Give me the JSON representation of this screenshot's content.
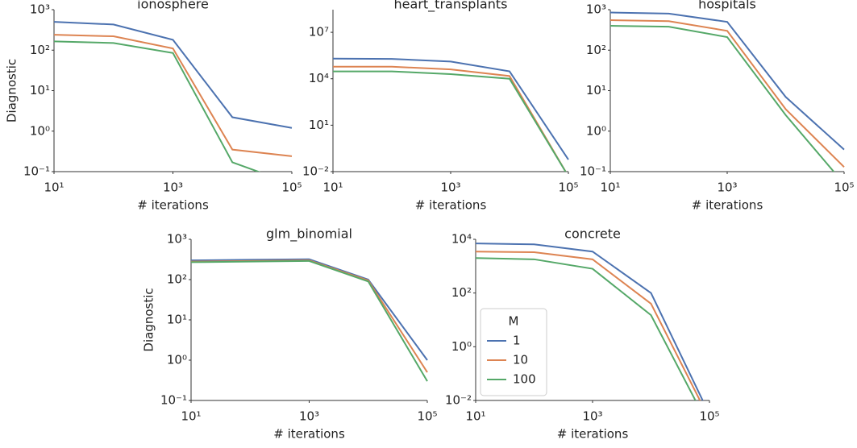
{
  "chart_data": [
    {
      "type": "line",
      "title": "ionosphere",
      "xlabel": "# iterations",
      "ylabel": "Diagnostic",
      "xscale": "log",
      "yscale": "log",
      "x": [
        10,
        100,
        1000,
        10000,
        100000
      ],
      "xlim": [
        10,
        100000
      ],
      "ylim": [
        0.1,
        1000
      ],
      "xticks": [
        {
          "value": 10,
          "label": "10¹"
        },
        {
          "value": 1000,
          "label": "10³"
        },
        {
          "value": 100000,
          "label": "10⁵"
        }
      ],
      "yticks": [
        {
          "value": 0.1,
          "label": "10⁻¹"
        },
        {
          "value": 1,
          "label": "10⁰"
        },
        {
          "value": 10,
          "label": "10¹"
        },
        {
          "value": 100,
          "label": "10²"
        },
        {
          "value": 1000,
          "label": "10³"
        }
      ],
      "series": [
        {
          "name": "1",
          "color": "#4c72b0",
          "values": [
            500,
            430,
            180,
            2.2,
            1.2
          ]
        },
        {
          "name": "10",
          "color": "#dd8452",
          "values": [
            240,
            220,
            110,
            0.35,
            0.24
          ]
        },
        {
          "name": "100",
          "color": "#55a868",
          "values": [
            165,
            150,
            85,
            0.17,
            0.05
          ]
        }
      ]
    },
    {
      "type": "line",
      "title": "heart_transplants",
      "xlabel": "# iterations",
      "xscale": "log",
      "yscale": "log",
      "x": [
        10,
        100,
        1000,
        10000,
        100000
      ],
      "xlim": [
        10,
        100000
      ],
      "ylim": [
        0.01,
        290000000
      ],
      "xticks": [
        {
          "value": 10,
          "label": "10¹"
        },
        {
          "value": 1000,
          "label": "10³"
        },
        {
          "value": 100000,
          "label": "10⁵"
        }
      ],
      "yticks": [
        {
          "value": 0.01,
          "label": "10⁻²"
        },
        {
          "value": 10,
          "label": "10¹"
        },
        {
          "value": 10000,
          "label": "10⁴"
        },
        {
          "value": 10000000,
          "label": "10⁷"
        }
      ],
      "series": [
        {
          "name": "1",
          "color": "#4c72b0",
          "values": [
            200000,
            190000,
            130000,
            30000,
            0.06
          ]
        },
        {
          "name": "10",
          "color": "#dd8452",
          "values": [
            60000,
            60000,
            40000,
            15000,
            0.005
          ]
        },
        {
          "name": "100",
          "color": "#55a868",
          "values": [
            30000,
            30000,
            20000,
            10000,
            0.005
          ]
        }
      ]
    },
    {
      "type": "line",
      "title": "hospitals",
      "xlabel": "# iterations",
      "xscale": "log",
      "yscale": "log",
      "x": [
        10,
        100,
        1000,
        10000,
        100000
      ],
      "xlim": [
        10,
        100000
      ],
      "ylim": [
        0.1,
        1000
      ],
      "xticks": [
        {
          "value": 10,
          "label": "10¹"
        },
        {
          "value": 1000,
          "label": "10³"
        },
        {
          "value": 100000,
          "label": "10⁵"
        }
      ],
      "yticks": [
        {
          "value": 0.1,
          "label": "10⁻¹"
        },
        {
          "value": 1,
          "label": "10⁰"
        },
        {
          "value": 10,
          "label": "10¹"
        },
        {
          "value": 100,
          "label": "10²"
        },
        {
          "value": 1000,
          "label": "10³"
        }
      ],
      "series": [
        {
          "name": "1",
          "color": "#4c72b0",
          "values": [
            850,
            800,
            500,
            7,
            0.35
          ]
        },
        {
          "name": "10",
          "color": "#dd8452",
          "values": [
            550,
            520,
            300,
            3.5,
            0.13
          ]
        },
        {
          "name": "100",
          "color": "#55a868",
          "values": [
            400,
            380,
            210,
            2.5,
            0.05
          ]
        }
      ]
    },
    {
      "type": "line",
      "title": "glm_binomial",
      "xlabel": "# iterations",
      "ylabel": "Diagnostic",
      "xscale": "log",
      "yscale": "log",
      "x": [
        10,
        100,
        1000,
        10000,
        100000
      ],
      "xlim": [
        10,
        100000
      ],
      "ylim": [
        0.1,
        1000
      ],
      "xticks": [
        {
          "value": 10,
          "label": "10¹"
        },
        {
          "value": 1000,
          "label": "10³"
        },
        {
          "value": 100000,
          "label": "10⁵"
        }
      ],
      "yticks": [
        {
          "value": 0.1,
          "label": "10⁻¹"
        },
        {
          "value": 1,
          "label": "10⁰"
        },
        {
          "value": 10,
          "label": "10¹"
        },
        {
          "value": 100,
          "label": "10²"
        },
        {
          "value": 1000,
          "label": "10³"
        }
      ],
      "series": [
        {
          "name": "1",
          "color": "#4c72b0",
          "values": [
            300,
            310,
            320,
            100,
            1.0
          ]
        },
        {
          "name": "10",
          "color": "#dd8452",
          "values": [
            280,
            290,
            300,
            95,
            0.5
          ]
        },
        {
          "name": "100",
          "color": "#55a868",
          "values": [
            270,
            280,
            290,
            90,
            0.3
          ]
        }
      ]
    },
    {
      "type": "line",
      "title": "concrete",
      "xlabel": "# iterations",
      "xscale": "log",
      "yscale": "log",
      "x": [
        10,
        100,
        1000,
        10000,
        100000
      ],
      "xlim": [
        10,
        100000
      ],
      "ylim": [
        0.01,
        10000
      ],
      "xticks": [
        {
          "value": 10,
          "label": "10¹"
        },
        {
          "value": 1000,
          "label": "10³"
        },
        {
          "value": 100000,
          "label": "10⁵"
        }
      ],
      "yticks": [
        {
          "value": 0.01,
          "label": "10⁻²"
        },
        {
          "value": 1,
          "label": "10⁰"
        },
        {
          "value": 100,
          "label": "10²"
        },
        {
          "value": 10000,
          "label": "10⁴"
        }
      ],
      "legend": "center left",
      "legend_title": "M",
      "series": [
        {
          "name": "1",
          "color": "#4c72b0",
          "values": [
            7000,
            6500,
            3500,
            100,
            0.003
          ]
        },
        {
          "name": "10",
          "color": "#dd8452",
          "values": [
            3500,
            3300,
            1800,
            40,
            0.002
          ]
        },
        {
          "name": "100",
          "color": "#55a868",
          "values": [
            2000,
            1800,
            800,
            15,
            0.001
          ]
        }
      ]
    }
  ]
}
